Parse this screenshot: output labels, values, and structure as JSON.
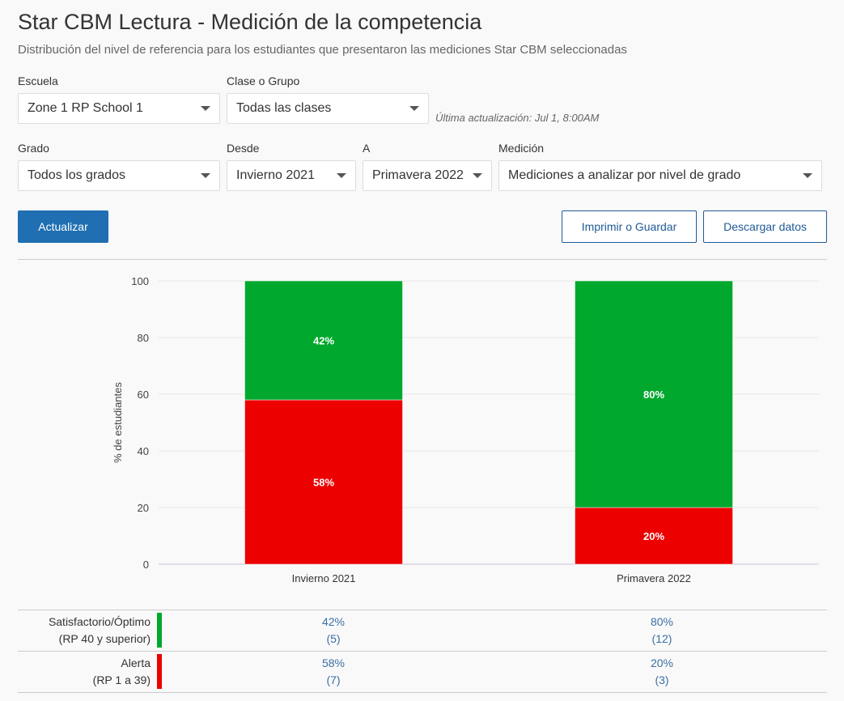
{
  "header": {
    "title": "Star CBM Lectura - Medición de la competencia",
    "subtitle": "Distribución del nivel de referencia para los estudiantes que presentaron las mediciones Star CBM seleccionadas"
  },
  "filters": {
    "school_label": "Escuela",
    "school_value": "Zone 1 RP School 1",
    "class_label": "Clase o Grupo",
    "class_value": "Todas las clases",
    "last_updated": "Última actualización: Jul 1, 8:00AM",
    "grade_label": "Grado",
    "grade_value": "Todos los grados",
    "from_label": "Desde",
    "from_value": "Invierno 2021",
    "to_label": "A",
    "to_value": "Primavera 2022",
    "measure_label": "Medición",
    "measure_value": "Mediciones a analizar por nivel de grado"
  },
  "buttons": {
    "update": "Actualizar",
    "print": "Imprimir o Guardar",
    "download": "Descargar datos"
  },
  "colors": {
    "green": "#00a82d",
    "red": "#ec0000",
    "primary": "#1f6fb2"
  },
  "chart_data": {
    "type": "bar",
    "stacked": true,
    "categories": [
      "Invierno 2021",
      "Primavera 2022"
    ],
    "series": [
      {
        "name": "Alerta",
        "values": [
          58,
          20
        ],
        "labels": [
          "58%",
          "20%"
        ],
        "color": "#ec0000"
      },
      {
        "name": "Satisfactorio/Óptimo",
        "values": [
          42,
          80
        ],
        "labels": [
          "42%",
          "80%"
        ],
        "color": "#00a82d"
      }
    ],
    "ylabel": "% de estudiantes",
    "ylim": [
      0,
      100
    ],
    "yticks": [
      0,
      20,
      40,
      60,
      80,
      100
    ],
    "grid": true
  },
  "table": {
    "rows": [
      {
        "label1": "Satisfactorio/Óptimo",
        "label2": "(RP 40 y superior)",
        "color": "#00a82d",
        "cells": [
          {
            "pct": "42%",
            "count": "(5)"
          },
          {
            "pct": "80%",
            "count": "(12)"
          }
        ]
      },
      {
        "label1": "Alerta",
        "label2": "(RP 1 a 39)",
        "color": "#ec0000",
        "cells": [
          {
            "pct": "58%",
            "count": "(7)"
          },
          {
            "pct": "20%",
            "count": "(3)"
          }
        ]
      }
    ]
  }
}
